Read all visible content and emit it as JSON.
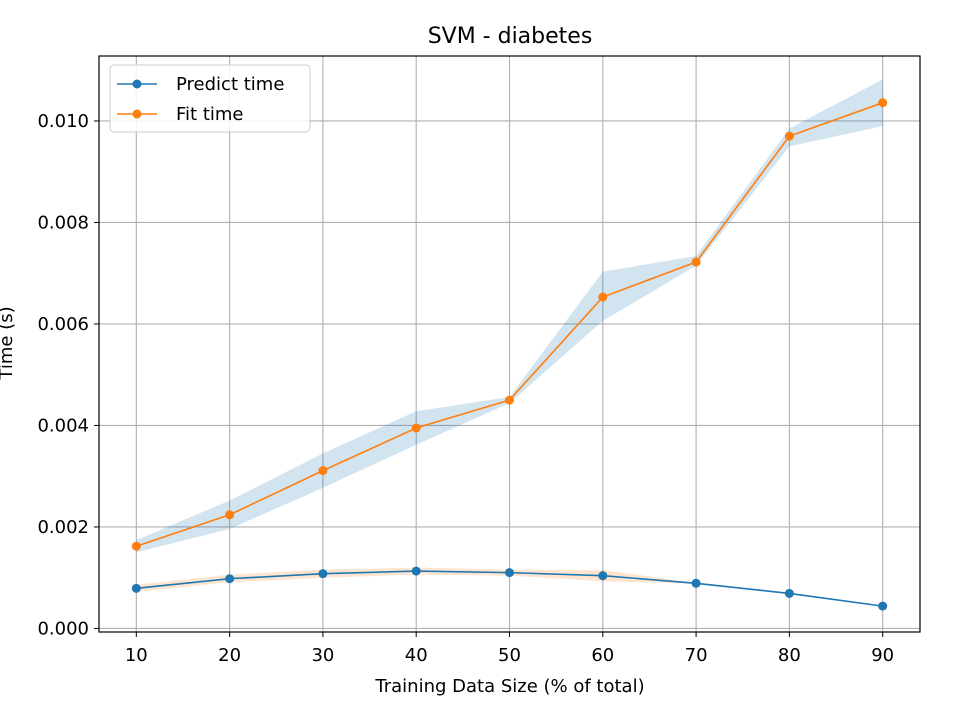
{
  "chart_data": {
    "type": "line",
    "title": "SVM - diabetes",
    "xlabel": "Training Data Size (% of total)",
    "ylabel": "Time (s)",
    "x": [
      10,
      20,
      30,
      40,
      50,
      60,
      70,
      80,
      90
    ],
    "xlim": [
      6,
      94
    ],
    "ylim": [
      -7e-05,
      0.01128
    ],
    "xticks": [
      10,
      20,
      30,
      40,
      50,
      60,
      70,
      80,
      90
    ],
    "xtick_labels": [
      "10",
      "20",
      "30",
      "40",
      "50",
      "60",
      "70",
      "80",
      "90"
    ],
    "yticks": [
      0,
      0.002,
      0.004,
      0.006,
      0.008,
      0.01
    ],
    "ytick_labels": [
      "0.000",
      "0.002",
      "0.004",
      "0.006",
      "0.008",
      "0.010"
    ],
    "grid": true,
    "legend_position": "top-left",
    "series": [
      {
        "name": "Predict time",
        "color": "#1f77b4",
        "band_color": "#ff7f0e",
        "values": [
          0.00079,
          0.00098,
          0.00108,
          0.00113,
          0.0011,
          0.00104,
          0.00089,
          0.00069,
          0.00044
        ],
        "band_low": [
          0.00072,
          0.00091,
          0.001,
          0.00106,
          0.00104,
          0.00093,
          0.00088,
          0.00068,
          0.00043
        ],
        "band_high": [
          0.00086,
          0.00106,
          0.00116,
          0.0012,
          0.00116,
          0.00115,
          0.0009,
          0.0007,
          0.00045
        ]
      },
      {
        "name": "Fit time",
        "color": "#ff7f0e",
        "band_color": "#1f77b4",
        "values": [
          0.00162,
          0.00224,
          0.00311,
          0.00395,
          0.0045,
          0.00653,
          0.00722,
          0.0097,
          0.01036
        ],
        "band_low": [
          0.0015,
          0.00196,
          0.00277,
          0.00362,
          0.00444,
          0.00606,
          0.00715,
          0.0095,
          0.0099
        ],
        "band_high": [
          0.00174,
          0.00252,
          0.00345,
          0.00428,
          0.00456,
          0.00703,
          0.00734,
          0.00985,
          0.01082
        ]
      }
    ]
  }
}
